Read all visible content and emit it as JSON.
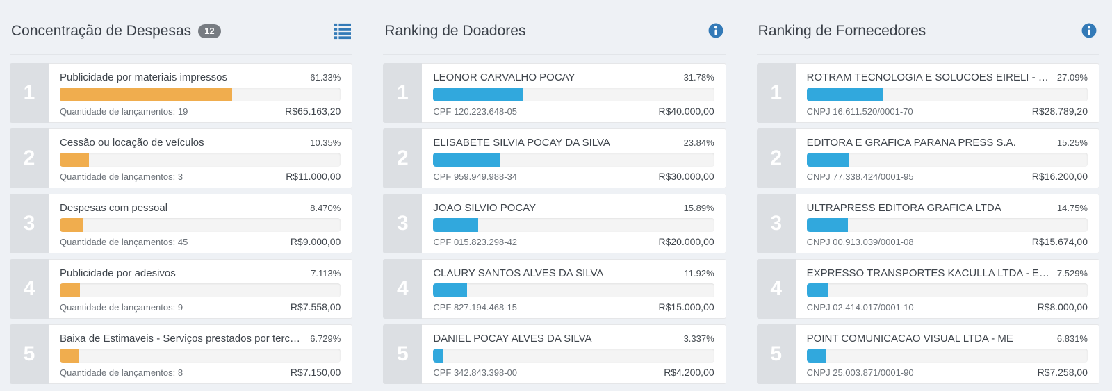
{
  "colors": {
    "expense_bar": "#f0ad4e",
    "donor_bar": "#31a8dd",
    "icon_blue": "#337ab7",
    "rank_bg": "#dcdfe3",
    "page_bg": "#eef1f5"
  },
  "panels": [
    {
      "title": "Concentração de Despesas",
      "badge": "12",
      "icon": "list-icon",
      "bar_color": "#f0ad4e",
      "items": [
        {
          "rank": "1",
          "label": "Publicidade por materiais impressos",
          "percent_label": "61.33%",
          "percent": 61.33,
          "subtitle": "Quantidade de lançamentos: 19",
          "value": "R$65.163,20"
        },
        {
          "rank": "2",
          "label": "Cessão ou locação de veículos",
          "percent_label": "10.35%",
          "percent": 10.35,
          "subtitle": "Quantidade de lançamentos: 3",
          "value": "R$11.000,00"
        },
        {
          "rank": "3",
          "label": "Despesas com pessoal",
          "percent_label": "8.470%",
          "percent": 8.47,
          "subtitle": "Quantidade de lançamentos: 45",
          "value": "R$9.000,00"
        },
        {
          "rank": "4",
          "label": "Publicidade por adesivos",
          "percent_label": "7.113%",
          "percent": 7.113,
          "subtitle": "Quantidade de lançamentos: 9",
          "value": "R$7.558,00"
        },
        {
          "rank": "5",
          "label": "Baixa de Estimaveis - Serviços prestados por terceiros",
          "percent_label": "6.729%",
          "percent": 6.729,
          "subtitle": "Quantidade de lançamentos: 8",
          "value": "R$7.150,00"
        }
      ]
    },
    {
      "title": "Ranking de Doadores",
      "badge": null,
      "icon": "info-icon",
      "bar_color": "#31a8dd",
      "items": [
        {
          "rank": "1",
          "label": "LEONOR CARVALHO POCAY",
          "percent_label": "31.78%",
          "percent": 31.78,
          "subtitle": "CPF 120.223.648-05",
          "value": "R$40.000,00"
        },
        {
          "rank": "2",
          "label": "ELISABETE SILVIA POCAY DA SILVA",
          "percent_label": "23.84%",
          "percent": 23.84,
          "subtitle": "CPF 959.949.988-34",
          "value": "R$30.000,00"
        },
        {
          "rank": "3",
          "label": "JOAO SILVIO POCAY",
          "percent_label": "15.89%",
          "percent": 15.89,
          "subtitle": "CPF 015.823.298-42",
          "value": "R$20.000,00"
        },
        {
          "rank": "4",
          "label": "CLAURY SANTOS ALVES DA SILVA",
          "percent_label": "11.92%",
          "percent": 11.92,
          "subtitle": "CPF 827.194.468-15",
          "value": "R$15.000,00"
        },
        {
          "rank": "5",
          "label": "DANIEL POCAY ALVES DA SILVA",
          "percent_label": "3.337%",
          "percent": 3.337,
          "subtitle": "CPF 342.843.398-00",
          "value": "R$4.200,00"
        }
      ]
    },
    {
      "title": "Ranking de Fornecedores",
      "badge": null,
      "icon": "info-icon",
      "bar_color": "#31a8dd",
      "items": [
        {
          "rank": "1",
          "label": "ROTRAM TECNOLOGIA E SOLUCOES EIRELI - ME",
          "percent_label": "27.09%",
          "percent": 27.09,
          "subtitle": "CNPJ 16.611.520/0001-70",
          "value": "R$28.789,20"
        },
        {
          "rank": "2",
          "label": "EDITORA E GRAFICA PARANA PRESS S.A.",
          "percent_label": "15.25%",
          "percent": 15.25,
          "subtitle": "CNPJ 77.338.424/0001-95",
          "value": "R$16.200,00"
        },
        {
          "rank": "3",
          "label": "ULTRAPRESS EDITORA GRAFICA LTDA",
          "percent_label": "14.75%",
          "percent": 14.75,
          "subtitle": "CNPJ 00.913.039/0001-08",
          "value": "R$15.674,00"
        },
        {
          "rank": "4",
          "label": "EXPRESSO TRANSPORTES KACULLA LTDA - EPP",
          "percent_label": "7.529%",
          "percent": 7.529,
          "subtitle": "CNPJ 02.414.017/0001-10",
          "value": "R$8.000,00"
        },
        {
          "rank": "5",
          "label": "POINT COMUNICACAO VISUAL LTDA - ME",
          "percent_label": "6.831%",
          "percent": 6.831,
          "subtitle": "CNPJ 25.003.871/0001-90",
          "value": "R$7.258,00"
        }
      ]
    }
  ]
}
